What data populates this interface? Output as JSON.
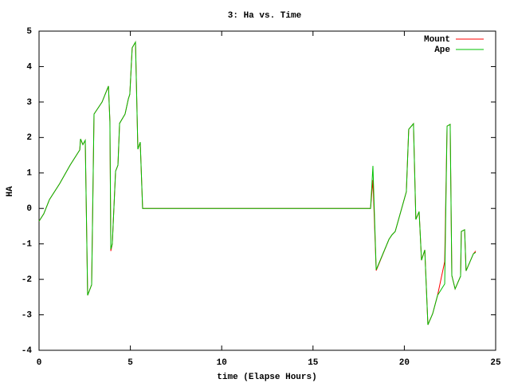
{
  "chart_data": {
    "type": "line",
    "title": "3: Ha vs. Time",
    "x_label": "time (Elapse Hours)",
    "y_label": "HA",
    "x": [
      0,
      0.26,
      0.57,
      1.13,
      1.7,
      2.23,
      2.27,
      2.4,
      2.53,
      2.66,
      2.88,
      3.01,
      3.45,
      3.8,
      3.88,
      3.93,
      4.01,
      4.19,
      4.32,
      4.41,
      4.71,
      4.89,
      4.97,
      5.1,
      5.28,
      5.41,
      5.54,
      5.67,
      18.15,
      18.28,
      18.46,
      19.16,
      19.33,
      19.5,
      20.11,
      20.24,
      20.5,
      20.63,
      20.81,
      20.94,
      21.12,
      21.29,
      21.55,
      21.82,
      22.21,
      22.34,
      22.51,
      22.6,
      22.78,
      23.08,
      23.12,
      23.3,
      23.38,
      23.78,
      23.91
    ],
    "series": [
      {
        "name": "Mount",
        "color": "#ff0000",
        "values": [
          -0.36,
          -0.15,
          0.25,
          0.7,
          1.22,
          1.65,
          1.96,
          1.8,
          1.92,
          -2.45,
          -2.15,
          2.66,
          3.0,
          3.45,
          2.45,
          -1.2,
          -1.0,
          1.05,
          1.22,
          2.4,
          2.66,
          3.09,
          3.22,
          4.53,
          4.69,
          1.67,
          1.87,
          0.0,
          0,
          0.8,
          -1.75,
          -0.87,
          -0.74,
          -0.65,
          0.47,
          2.23,
          2.39,
          -0.31,
          -0.09,
          -1.46,
          -1.17,
          -3.28,
          -2.97,
          -2.45,
          -1.5,
          2.32,
          2.37,
          -1.89,
          -2.27,
          -1.91,
          -0.65,
          -0.6,
          -1.76,
          -1.28,
          -1.2
        ]
      },
      {
        "name": "Ape",
        "color": "#00c000",
        "values": [
          -0.36,
          -0.15,
          0.25,
          0.7,
          1.22,
          1.65,
          1.96,
          1.8,
          1.92,
          -2.45,
          -2.15,
          2.66,
          3.0,
          3.45,
          2.45,
          -1.15,
          -1.0,
          1.05,
          1.22,
          2.4,
          2.66,
          3.09,
          3.22,
          4.53,
          4.69,
          1.67,
          1.87,
          0.0,
          0,
          1.2,
          -1.73,
          -0.87,
          -0.74,
          -0.65,
          0.47,
          2.23,
          2.39,
          -0.31,
          -0.09,
          -1.46,
          -1.17,
          -3.28,
          -2.97,
          -2.45,
          -2.13,
          2.32,
          2.37,
          -1.89,
          -2.27,
          -1.91,
          -0.65,
          -0.6,
          -1.76,
          -1.28,
          -1.24
        ]
      }
    ],
    "xlim": [
      0,
      25
    ],
    "xticks": [
      0,
      5,
      10,
      15,
      20,
      25
    ],
    "ylim": [
      -4,
      5
    ],
    "yticks": [
      -4,
      -3,
      -2,
      -1,
      0,
      1,
      2,
      3,
      4,
      5
    ],
    "legend": "top-right"
  }
}
